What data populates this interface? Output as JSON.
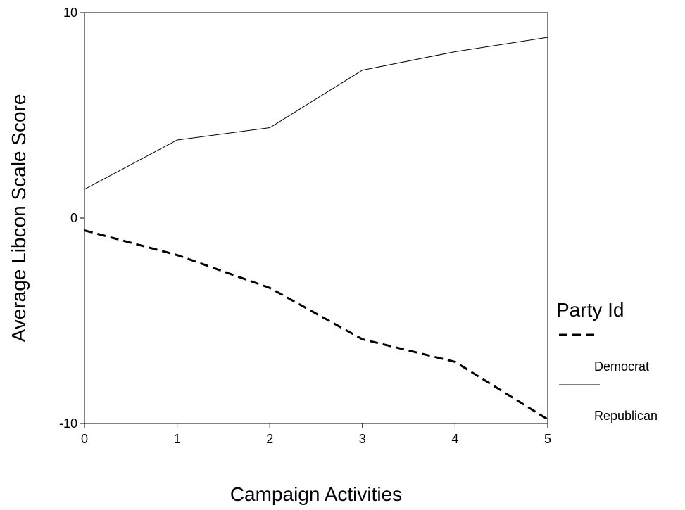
{
  "chart_data": {
    "type": "line",
    "title": "",
    "xlabel": "Campaign Activities",
    "ylabel": "Average Libcon Scale Score",
    "x": [
      0,
      1,
      2,
      3,
      4,
      5
    ],
    "xlim": [
      0,
      5
    ],
    "ylim": [
      -10,
      10
    ],
    "xticks": [
      "0",
      "1",
      "2",
      "3",
      "4",
      "5"
    ],
    "yticks": [
      {
        "value": 10,
        "label": "10"
      },
      {
        "value": 0,
        "label": "0"
      },
      {
        "value": -10,
        "label": "-10"
      }
    ],
    "grid": false,
    "legend": {
      "title": "Party Id",
      "placement": "right"
    },
    "series": [
      {
        "name": "Democrat",
        "style": "dashed",
        "color": "#000000",
        "values": [
          -0.6,
          -1.8,
          -3.4,
          -5.9,
          -7.0,
          -9.8
        ]
      },
      {
        "name": "Republican",
        "style": "solid",
        "color": "#000000",
        "values": [
          1.4,
          3.8,
          4.4,
          7.2,
          8.1,
          8.8
        ]
      }
    ]
  }
}
